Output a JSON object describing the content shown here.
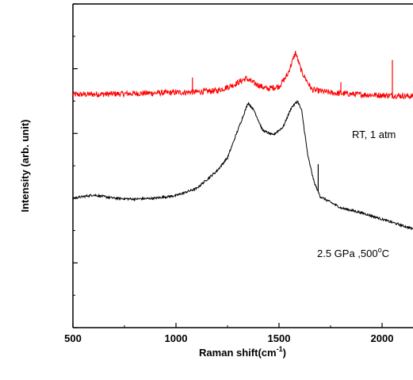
{
  "chart_data": {
    "type": "line",
    "title": "",
    "xlabel_main": "Raman shift(cm",
    "xlabel_sup": "-1",
    "xlabel_end": ")",
    "ylabel": "Intensity (arb. unit)",
    "xlim": [
      500,
      2150
    ],
    "ylim": [
      0,
      10
    ],
    "x_ticks": [
      500,
      1000,
      1500,
      2000
    ],
    "x_tick_labels": [
      "500",
      "1000",
      "1500",
      "2000"
    ],
    "y_ticks_labeled": false,
    "grid": false,
    "series": [
      {
        "name": "RT, 1 atm",
        "color": "#ff0000",
        "points": [
          [
            500,
            7.2
          ],
          [
            700,
            7.22
          ],
          [
            900,
            7.25
          ],
          [
            1100,
            7.28
          ],
          [
            1200,
            7.32
          ],
          [
            1280,
            7.5
          ],
          [
            1340,
            7.7
          ],
          [
            1380,
            7.55
          ],
          [
            1440,
            7.38
          ],
          [
            1500,
            7.45
          ],
          [
            1540,
            7.8
          ],
          [
            1580,
            8.5
          ],
          [
            1610,
            7.9
          ],
          [
            1660,
            7.35
          ],
          [
            1760,
            7.25
          ],
          [
            1900,
            7.2
          ],
          [
            2000,
            7.18
          ],
          [
            2150,
            7.15
          ]
        ],
        "spikes": [
          {
            "x": 1080,
            "height": 0.45
          },
          {
            "x": 1800,
            "height": 0.35
          },
          {
            "x": 2050,
            "height": 1.1
          }
        ]
      },
      {
        "name": "2.5 GPa ,500°C",
        "color": "#000000",
        "points": [
          [
            500,
            4.0
          ],
          [
            600,
            4.1
          ],
          [
            700,
            4.0
          ],
          [
            800,
            3.97
          ],
          [
            900,
            4.0
          ],
          [
            1000,
            4.08
          ],
          [
            1100,
            4.3
          ],
          [
            1200,
            4.85
          ],
          [
            1250,
            5.25
          ],
          [
            1300,
            6.1
          ],
          [
            1350,
            6.95
          ],
          [
            1380,
            6.7
          ],
          [
            1420,
            6.1
          ],
          [
            1470,
            5.95
          ],
          [
            1520,
            6.2
          ],
          [
            1560,
            6.8
          ],
          [
            1590,
            7.0
          ],
          [
            1610,
            6.7
          ],
          [
            1640,
            5.3
          ],
          [
            1670,
            4.5
          ],
          [
            1700,
            4.05
          ],
          [
            1800,
            3.7
          ],
          [
            1900,
            3.55
          ],
          [
            2000,
            3.35
          ],
          [
            2150,
            3.05
          ]
        ],
        "spikes": [
          {
            "x": 1690,
            "height": 0.85
          }
        ]
      }
    ],
    "annotations": [
      {
        "text": "RT, 1 atm",
        "series": 0
      },
      {
        "text_main": "2.5 GPa ,500",
        "text_sup": "o",
        "text_end": "C",
        "series": 1
      }
    ]
  }
}
